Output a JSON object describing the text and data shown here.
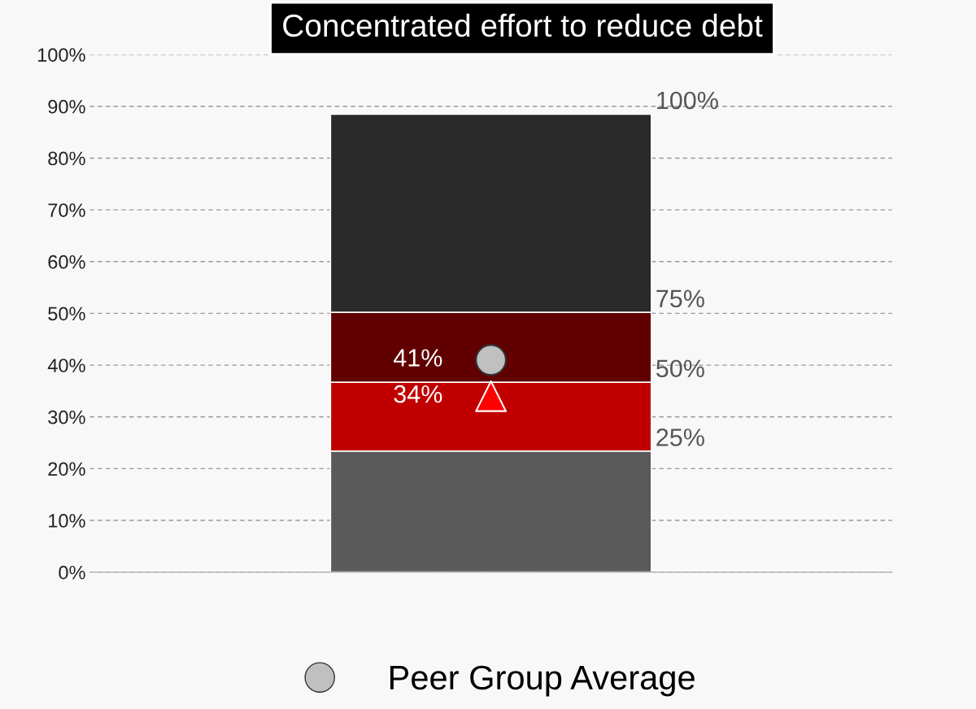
{
  "chart_data": {
    "type": "bar",
    "title": "Concentrated effort to reduce debt",
    "stacked": true,
    "categories": [
      null
    ],
    "series": [
      {
        "color": "#5a5a5a",
        "values": [
          23.4
        ]
      },
      {
        "color": "#c00000",
        "values": [
          13.3
        ]
      },
      {
        "color": "#600000",
        "values": [
          13.5
        ]
      },
      {
        "color": "#2a2a2a",
        "values": [
          38.3
        ]
      },
      {
        "type": "scatter",
        "color": "#ff0000",
        "marker": "triangle",
        "values": [
          34
        ],
        "value_labels": [
          "34%"
        ]
      },
      {
        "type": "scatter",
        "name": "Peer Group Average",
        "color": "#c0c0c0",
        "marker": "circle",
        "values": [
          41
        ],
        "value_labels": [
          "41%"
        ]
      }
    ],
    "annotations": [
      "25%",
      "50%",
      "75%",
      "100%"
    ],
    "ylim": [
      0,
      100
    ],
    "yticks": [
      {
        "value": 0,
        "label": "0%"
      },
      {
        "value": 10,
        "label": "10%"
      },
      {
        "value": 20,
        "label": "20%"
      },
      {
        "value": 30,
        "label": "30%"
      },
      {
        "value": 40,
        "label": "40%"
      },
      {
        "value": 50,
        "label": "50%"
      },
      {
        "value": 60,
        "label": "60%"
      },
      {
        "value": 70,
        "label": "70%"
      },
      {
        "value": 80,
        "label": "80%"
      },
      {
        "value": 90,
        "label": "90%"
      },
      {
        "value": 100,
        "label": "100%"
      }
    ],
    "grid": "y",
    "legend": "bottom"
  }
}
